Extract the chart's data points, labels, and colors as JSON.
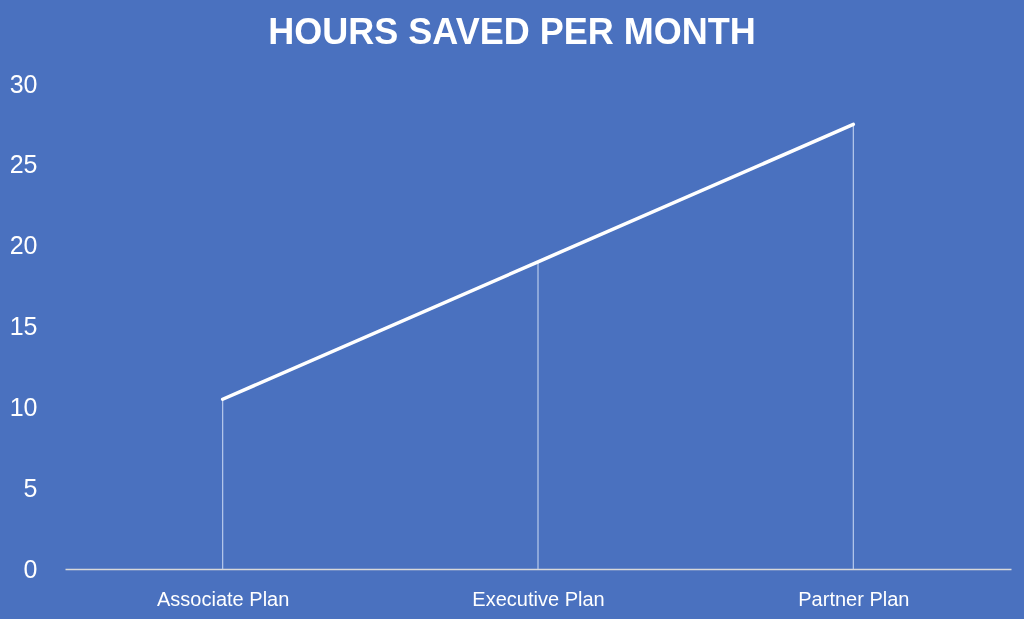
{
  "chart_data": {
    "type": "line",
    "title": "HOURS SAVED PER MONTH",
    "categories": [
      "Associate Plan",
      "Executive Plan",
      "Partner Plan"
    ],
    "series": [
      {
        "color": "#ffffff",
        "values": [
          10.5,
          19,
          27.5
        ]
      },
      {
        "type": "bar",
        "color": "#b9cbec",
        "values": [
          10.5,
          19,
          27.5
        ]
      }
    ],
    "ylim": [
      0,
      30
    ],
    "yticks": [
      0,
      5,
      10,
      15,
      20,
      25,
      30
    ],
    "grid": false
  }
}
